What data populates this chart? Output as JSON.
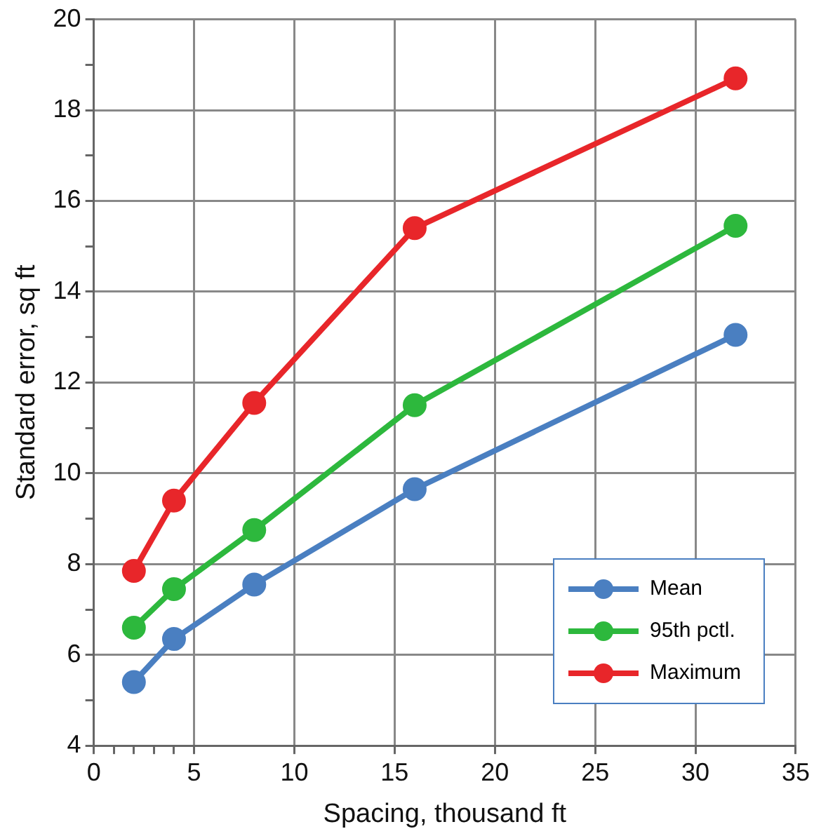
{
  "chart_data": {
    "type": "line",
    "xlabel": "Spacing, thousand ft",
    "ylabel": "Standard error, sq ft",
    "x": [
      2,
      4,
      8,
      16,
      32
    ],
    "series": [
      {
        "name": "Mean",
        "color": "#4a7fc1",
        "values": [
          5.4,
          6.35,
          7.55,
          9.65,
          13.05
        ]
      },
      {
        "name": "95th pctl.",
        "color": "#2db83d",
        "values": [
          6.6,
          7.45,
          8.75,
          11.5,
          15.45
        ]
      },
      {
        "name": "Maximum",
        "color": "#e8262a",
        "values": [
          7.85,
          9.4,
          11.55,
          15.4,
          18.7
        ]
      }
    ],
    "xlim": [
      0,
      35
    ],
    "xticks": [
      0,
      {
        "value": 1,
        "label": null
      },
      {
        "value": 2,
        "label": null
      },
      {
        "value": 3,
        "label": null
      },
      {
        "value": 4,
        "label": null
      },
      5,
      10,
      15,
      20,
      25,
      30,
      35
    ],
    "ylim": [
      4,
      20
    ],
    "yticks": [
      4,
      {
        "value": 5,
        "label": null
      },
      6,
      {
        "value": 7,
        "label": null
      },
      8,
      {
        "value": 9,
        "label": null
      },
      10,
      {
        "value": 11,
        "label": null
      },
      12,
      {
        "value": 13,
        "label": null
      },
      14,
      {
        "value": 15,
        "label": null
      },
      16,
      {
        "value": 17,
        "label": null
      },
      18,
      {
        "value": 19,
        "label": null
      },
      20
    ],
    "grid": true,
    "legend": "bottom right",
    "marker": "circle",
    "line_style": "solid"
  }
}
